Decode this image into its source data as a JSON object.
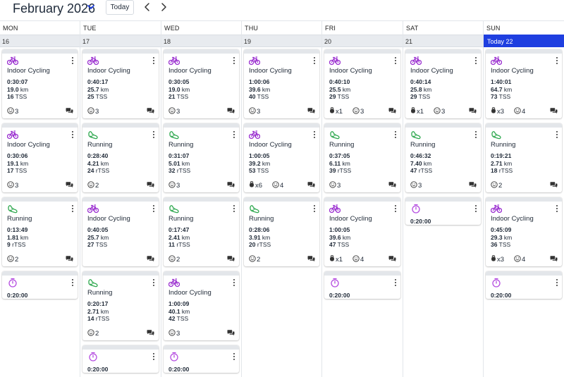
{
  "header": {
    "month": "February 2026",
    "today_label": "Today"
  },
  "colors": {
    "cycling": "#9b30d0",
    "running": "#2fa84f",
    "timer": "#b44be0",
    "today": "#1f3fe0"
  },
  "days": [
    {
      "name": "MON",
      "date": "16",
      "items": [
        {
          "kind": "workout",
          "sport": "cycling",
          "title": "Indoor Cycling",
          "duration": "0:30:07",
          "distance": "19.0",
          "dist_unit": " km",
          "load": "16",
          "load_unit": " TSS",
          "reps": "",
          "feel": "3"
        },
        {
          "kind": "workout",
          "sport": "cycling",
          "title": "Indoor Cycling",
          "duration": "0:30:06",
          "distance": "19.1",
          "dist_unit": " km",
          "load": "17",
          "load_unit": " TSS",
          "reps": "",
          "feel": "3"
        },
        {
          "kind": "workout",
          "sport": "running",
          "title": "Running",
          "duration": "0:13:49",
          "distance": "1.81",
          "dist_unit": " km",
          "load": "9",
          "load_unit": " rTSS",
          "reps": "",
          "feel": "2"
        },
        {
          "kind": "timer",
          "duration": "0:20:00"
        }
      ]
    },
    {
      "name": "TUE",
      "date": "17",
      "items": [
        {
          "kind": "workout",
          "sport": "cycling",
          "title": "Indoor Cycling",
          "duration": "0:40:17",
          "distance": "25.7",
          "dist_unit": " km",
          "load": "25",
          "load_unit": " TSS",
          "reps": "",
          "feel": "3"
        },
        {
          "kind": "workout",
          "sport": "running",
          "title": "Running",
          "duration": "0:28:40",
          "distance": "4.21",
          "dist_unit": " km",
          "load": "24",
          "load_unit": " rTSS",
          "reps": "",
          "feel": "2"
        },
        {
          "kind": "workout",
          "sport": "cycling",
          "title": "Indoor Cycling",
          "duration": "0:40:05",
          "distance": "25.7",
          "dist_unit": " km",
          "load": "27",
          "load_unit": " TSS",
          "reps": "",
          "feel": ""
        },
        {
          "kind": "workout",
          "sport": "running",
          "title": "Running",
          "duration": "0:20:17",
          "distance": "2.71",
          "dist_unit": " km",
          "load": "14",
          "load_unit": " rTSS",
          "reps": "",
          "feel": "2"
        },
        {
          "kind": "timer",
          "duration": "0:20:00"
        }
      ]
    },
    {
      "name": "WED",
      "date": "18",
      "items": [
        {
          "kind": "workout",
          "sport": "cycling",
          "title": "Indoor Cycling",
          "duration": "0:30:05",
          "distance": "19.0",
          "dist_unit": " km",
          "load": "21",
          "load_unit": " TSS",
          "reps": "",
          "feel": "3"
        },
        {
          "kind": "workout",
          "sport": "running",
          "title": "Running",
          "duration": "0:31:07",
          "distance": "5.01",
          "dist_unit": " km",
          "load": "32",
          "load_unit": " rTSS",
          "reps": "",
          "feel": "3"
        },
        {
          "kind": "workout",
          "sport": "running",
          "title": "Running",
          "duration": "0:17:47",
          "distance": "2.41",
          "dist_unit": " km",
          "load": "11",
          "load_unit": " rTSS",
          "reps": "",
          "feel": "2"
        },
        {
          "kind": "workout",
          "sport": "cycling",
          "title": "Indoor Cycling",
          "duration": "1:00:09",
          "distance": "40.1",
          "dist_unit": " km",
          "load": "42",
          "load_unit": " TSS",
          "reps": "",
          "feel": "3"
        },
        {
          "kind": "timer",
          "duration": "0:20:00"
        }
      ]
    },
    {
      "name": "THU",
      "date": "19",
      "items": [
        {
          "kind": "workout",
          "sport": "cycling",
          "title": "Indoor Cycling",
          "duration": "1:00:06",
          "distance": "39.6",
          "dist_unit": " km",
          "load": "40",
          "load_unit": " TSS",
          "reps": "",
          "feel": "3"
        },
        {
          "kind": "workout",
          "sport": "cycling",
          "title": "Indoor Cycling",
          "duration": "1:00:05",
          "distance": "39.2",
          "dist_unit": " km",
          "load": "53",
          "load_unit": " TSS",
          "reps": "x6",
          "feel": "4"
        },
        {
          "kind": "workout",
          "sport": "running",
          "title": "Running",
          "duration": "0:28:06",
          "distance": "3.91",
          "dist_unit": " km",
          "load": "20",
          "load_unit": " rTSS",
          "reps": "",
          "feel": "2"
        }
      ]
    },
    {
      "name": "FRI",
      "date": "20",
      "items": [
        {
          "kind": "workout",
          "sport": "cycling",
          "title": "Indoor Cycling",
          "duration": "0:40:10",
          "distance": "25.5",
          "dist_unit": " km",
          "load": "29",
          "load_unit": " TSS",
          "reps": "x1",
          "feel": "3"
        },
        {
          "kind": "workout",
          "sport": "running",
          "title": "Running",
          "duration": "0:37:05",
          "distance": "6.11",
          "dist_unit": " km",
          "load": "39",
          "load_unit": " rTSS",
          "reps": "",
          "feel": "3"
        },
        {
          "kind": "workout",
          "sport": "cycling",
          "title": "Indoor Cycling",
          "duration": "1:00:05",
          "distance": "39.6",
          "dist_unit": " km",
          "load": "47",
          "load_unit": " TSS",
          "reps": "x1",
          "feel": "4"
        },
        {
          "kind": "timer",
          "duration": "0:20:00"
        }
      ]
    },
    {
      "name": "SAT",
      "date": "21",
      "items": [
        {
          "kind": "workout",
          "sport": "cycling",
          "title": "Indoor Cycling",
          "duration": "0:40:14",
          "distance": "25.8",
          "dist_unit": " km",
          "load": "29",
          "load_unit": " TSS",
          "reps": "x1",
          "feel": "3"
        },
        {
          "kind": "workout",
          "sport": "running",
          "title": "Running",
          "duration": "0:46:32",
          "distance": "7.40",
          "dist_unit": " km",
          "load": "47",
          "load_unit": " rTSS",
          "reps": "",
          "feel": "3"
        },
        {
          "kind": "timer",
          "duration": "0:20:00"
        }
      ]
    },
    {
      "name": "SUN",
      "date": "Today 22",
      "today": true,
      "items": [
        {
          "kind": "workout",
          "sport": "cycling",
          "title": "Indoor Cycling",
          "duration": "1:40:01",
          "distance": "64.7",
          "dist_unit": " km",
          "load": "73",
          "load_unit": " TSS",
          "reps": "x3",
          "feel": "4"
        },
        {
          "kind": "workout",
          "sport": "running",
          "title": "Running",
          "duration": "0:19:21",
          "distance": "2.71",
          "dist_unit": " km",
          "load": "18",
          "load_unit": " rTSS",
          "reps": "",
          "feel": "2"
        },
        {
          "kind": "workout",
          "sport": "cycling",
          "title": "Indoor Cycling",
          "duration": "0:45:09",
          "distance": "29.3",
          "dist_unit": " km",
          "load": "36",
          "load_unit": " TSS",
          "reps": "x3",
          "feel": "4"
        },
        {
          "kind": "timer",
          "duration": "0:20:00"
        }
      ]
    }
  ]
}
